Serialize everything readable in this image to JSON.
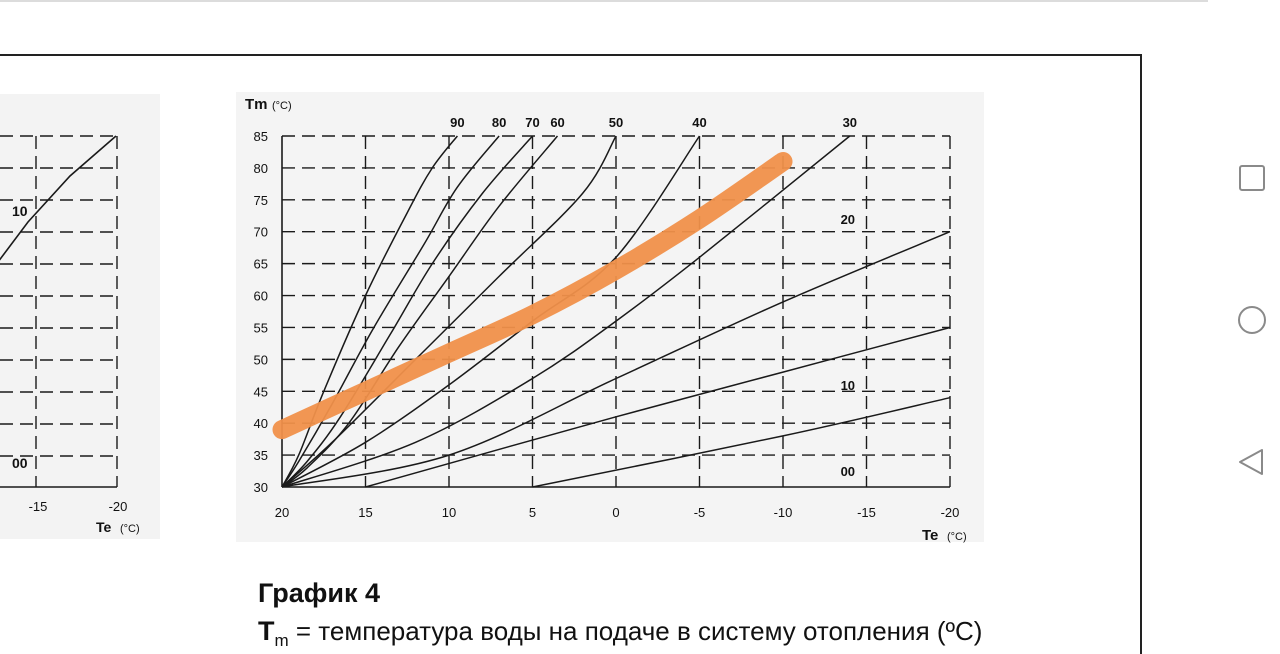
{
  "caption": {
    "title": "График 4",
    "line_symbol": "T",
    "line_sub": "m",
    "line_text": " = температура воды на подаче в систему отопления (ºC)"
  },
  "navigation": {
    "buttons": [
      {
        "name": "recents-button",
        "icon": "square-icon"
      },
      {
        "name": "home-button",
        "icon": "circle-icon"
      },
      {
        "name": "back-button",
        "icon": "triangle-back-icon"
      }
    ],
    "color": "#8a8a8a"
  },
  "colors": {
    "highlight": "#f0904a",
    "curves": "#1a1a1a"
  },
  "chart_data": [
    {
      "type": "line",
      "partial": true,
      "xlabel": "Te",
      "xlabel_unit": "(°C)",
      "x_ticks": [
        "-15",
        "-20"
      ],
      "curve_labels": [
        "10",
        "00"
      ]
    },
    {
      "type": "line",
      "title": "",
      "ylabel": "Tm",
      "ylabel_unit": "(°C)",
      "xlabel": "Te",
      "xlabel_unit": "(°C)",
      "x_ticks": [
        20,
        15,
        10,
        5,
        0,
        -5,
        -10,
        -15,
        -20
      ],
      "y_ticks": [
        30,
        35,
        40,
        45,
        50,
        55,
        60,
        65,
        70,
        75,
        80,
        85
      ],
      "xlim": [
        20,
        -20
      ],
      "ylim": [
        30,
        85
      ],
      "grid": "dashed",
      "top_labels": [
        {
          "text": "90",
          "x": 9.5
        },
        {
          "text": "80",
          "x": 7
        },
        {
          "text": "70",
          "x": 5
        },
        {
          "text": "60",
          "x": 3.5
        },
        {
          "text": "50",
          "x": 0
        },
        {
          "text": "40",
          "x": -5
        },
        {
          "text": "30",
          "x": -14
        }
      ],
      "side_labels": [
        {
          "text": "20",
          "x": -14,
          "y": 72
        },
        {
          "text": "10",
          "x": -14,
          "y": 46
        },
        {
          "text": "00",
          "x": -14,
          "y": 32.5
        }
      ],
      "series": [
        {
          "id": "90",
          "points": [
            [
              20,
              30
            ],
            [
              19,
              35
            ],
            [
              17.5,
              45
            ],
            [
              15,
              60
            ],
            [
              12.5,
              73
            ],
            [
              11,
              80
            ],
            [
              9.5,
              85
            ]
          ]
        },
        {
          "id": "80",
          "points": [
            [
              20,
              30
            ],
            [
              19,
              34
            ],
            [
              17,
              43
            ],
            [
              14.5,
              55
            ],
            [
              11.5,
              68
            ],
            [
              9.5,
              77
            ],
            [
              7,
              85
            ]
          ]
        },
        {
          "id": "70",
          "points": [
            [
              20,
              30
            ],
            [
              18.5,
              34
            ],
            [
              16.5,
              41
            ],
            [
              13.5,
              54
            ],
            [
              11,
              65
            ],
            [
              8,
              76
            ],
            [
              5,
              85
            ]
          ]
        },
        {
          "id": "60",
          "points": [
            [
              20,
              30
            ],
            [
              18.5,
              33
            ],
            [
              16,
              40
            ],
            [
              13,
              52
            ],
            [
              10,
              63
            ],
            [
              7,
              74
            ],
            [
              3.5,
              85
            ]
          ]
        },
        {
          "id": "50",
          "points": [
            [
              20,
              30
            ],
            [
              17,
              37
            ],
            [
              12,
              50
            ],
            [
              7,
              63
            ],
            [
              2,
              76
            ],
            [
              0,
              85
            ]
          ]
        },
        {
          "id": "40",
          "points": [
            [
              20,
              30
            ],
            [
              15,
              37
            ],
            [
              10,
              46
            ],
            [
              5,
              56
            ],
            [
              0,
              66
            ],
            [
              -5,
              85
            ]
          ]
        },
        {
          "id": "30",
          "points": [
            [
              20,
              30
            ],
            [
              12,
              37
            ],
            [
              5,
              47
            ],
            [
              0,
              56
            ],
            [
              -5,
              66
            ],
            [
              -14,
              85
            ]
          ]
        },
        {
          "id": "20",
          "points": [
            [
              20,
              30
            ],
            [
              10,
              35
            ],
            [
              0,
              47
            ],
            [
              -10,
              59
            ],
            [
              -20,
              70
            ]
          ]
        },
        {
          "id": "10",
          "points": [
            [
              15,
              30
            ],
            [
              0,
              41
            ],
            [
              -10,
              48
            ],
            [
              -20,
              55
            ]
          ]
        },
        {
          "id": "00",
          "points": [
            [
              5,
              30
            ],
            [
              -10,
              38
            ],
            [
              -20,
              44
            ]
          ]
        }
      ],
      "highlight": {
        "points": [
          [
            20,
            39
          ],
          [
            15,
            45
          ],
          [
            10,
            51
          ],
          [
            5,
            57
          ],
          [
            0,
            64
          ],
          [
            -5,
            72
          ],
          [
            -10,
            81
          ]
        ]
      }
    }
  ]
}
